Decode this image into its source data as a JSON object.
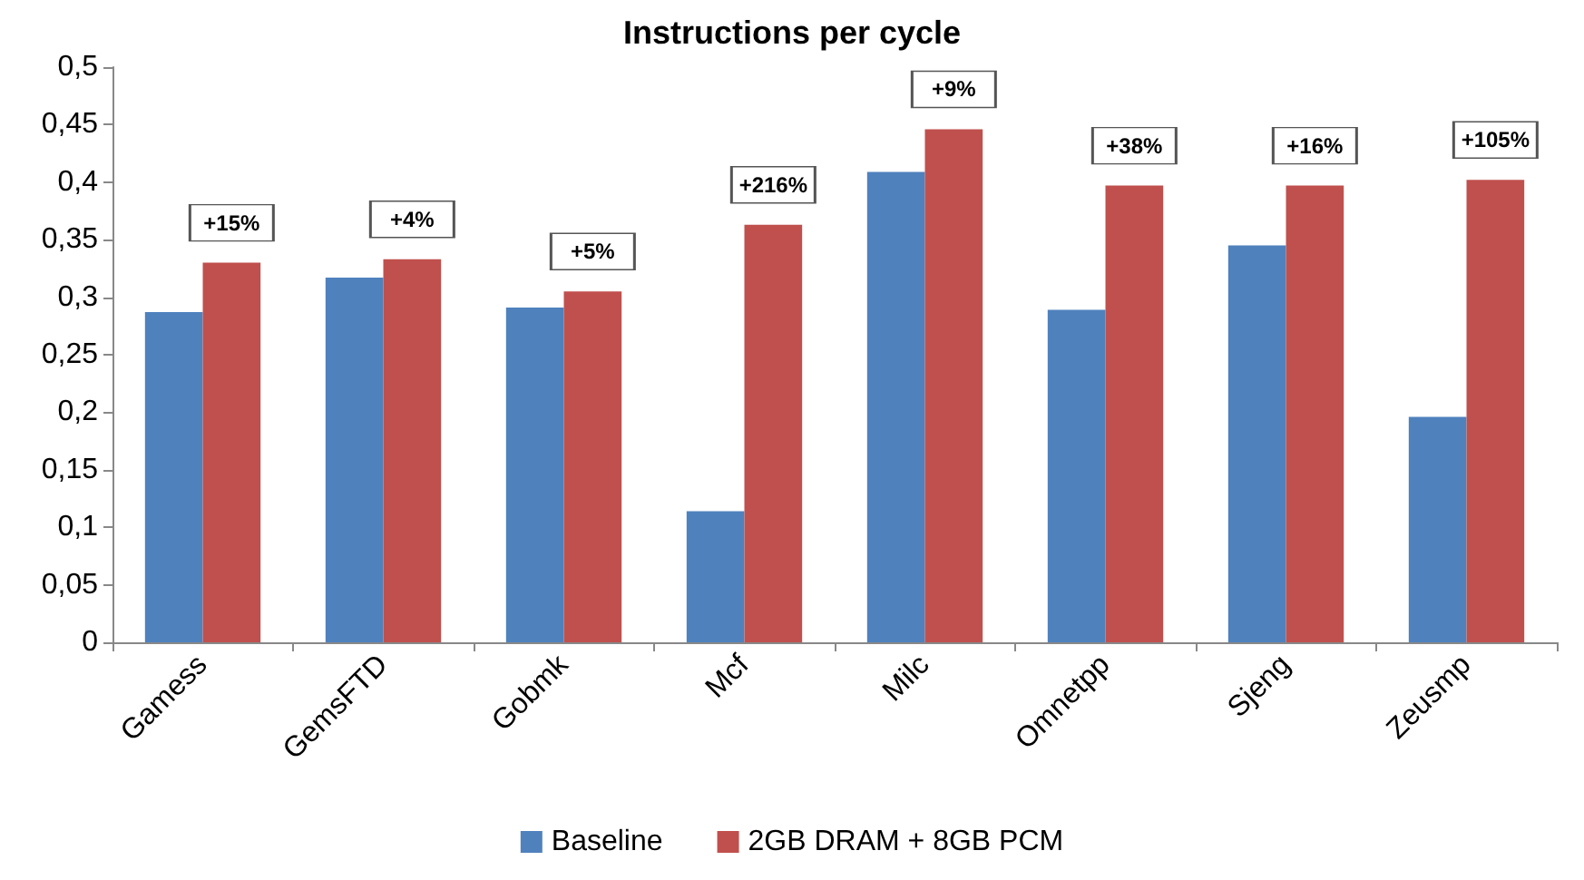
{
  "chart_data": {
    "type": "bar",
    "title": "Instructions per cycle",
    "categories": [
      "Gamess",
      "GemsFTD",
      "Gobmk",
      "Mcf",
      "Milc",
      "Omnetpp",
      "Sjeng",
      "Zeusmp"
    ],
    "series": [
      {
        "name": "Baseline",
        "color": "#4f81bd",
        "values": [
          0.287,
          0.317,
          0.291,
          0.114,
          0.409,
          0.289,
          0.345,
          0.196
        ]
      },
      {
        "name": "2GB DRAM + 8GB PCM",
        "color": "#c0504d",
        "values": [
          0.33,
          0.333,
          0.305,
          0.363,
          0.446,
          0.397,
          0.397,
          0.402
        ]
      }
    ],
    "ylim": [
      0,
      0.5
    ],
    "yticks": [
      {
        "value": 0,
        "label": "0"
      },
      {
        "value": 0.05,
        "label": "0,05"
      },
      {
        "value": 0.1,
        "label": "0,1"
      },
      {
        "value": 0.15,
        "label": "0,15"
      },
      {
        "value": 0.2,
        "label": "0,2"
      },
      {
        "value": 0.25,
        "label": "0,25"
      },
      {
        "value": 0.3,
        "label": "0,3"
      },
      {
        "value": 0.35,
        "label": "0,35"
      },
      {
        "value": 0.4,
        "label": "0,4"
      },
      {
        "value": 0.45,
        "label": "0,45"
      },
      {
        "value": 0.5,
        "label": "0,5"
      }
    ],
    "annotations": [
      {
        "text": "+15%",
        "x": "Gamess",
        "y": 0.33
      },
      {
        "text": "+4%",
        "x": "GemsFTD",
        "y": 0.333
      },
      {
        "text": "+5%",
        "x": "Gobmk",
        "y": 0.305
      },
      {
        "text": "+216%",
        "x": "Mcf",
        "y": 0.363
      },
      {
        "text": "+9%",
        "x": "Milc",
        "y": 0.446
      },
      {
        "text": "+38%",
        "x": "Omnetpp",
        "y": 0.397
      },
      {
        "text": "+16%",
        "x": "Sjeng",
        "y": 0.397
      },
      {
        "text": "+105%",
        "x": "Zeusmp",
        "y": 0.402
      }
    ],
    "legend": "bottom",
    "grid": false
  }
}
